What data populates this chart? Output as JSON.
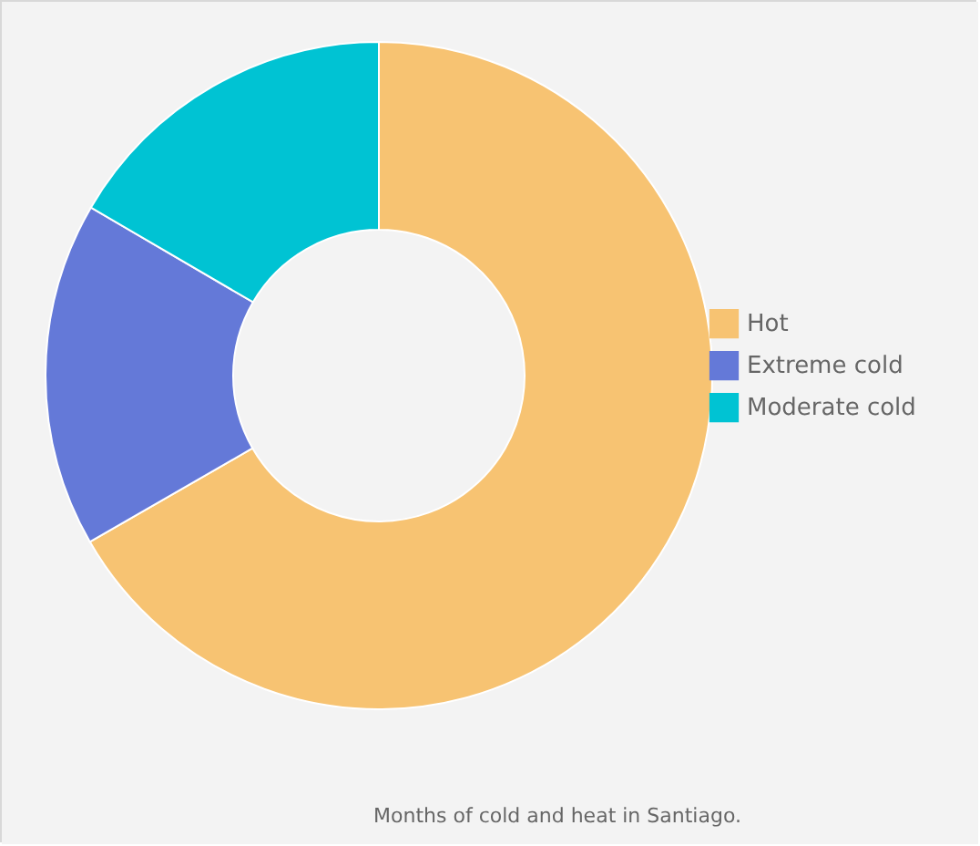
{
  "chart_data": {
    "type": "donut",
    "categories": [
      "Hot",
      "Extreme cold",
      "Moderate cold"
    ],
    "values": [
      66.7,
      16.7,
      16.6
    ],
    "colors": [
      "#f7c372",
      "#6479d8",
      "#00c3d3"
    ],
    "legend": "right",
    "annotations": [
      "Months of cold and heat in Santiago."
    ]
  }
}
